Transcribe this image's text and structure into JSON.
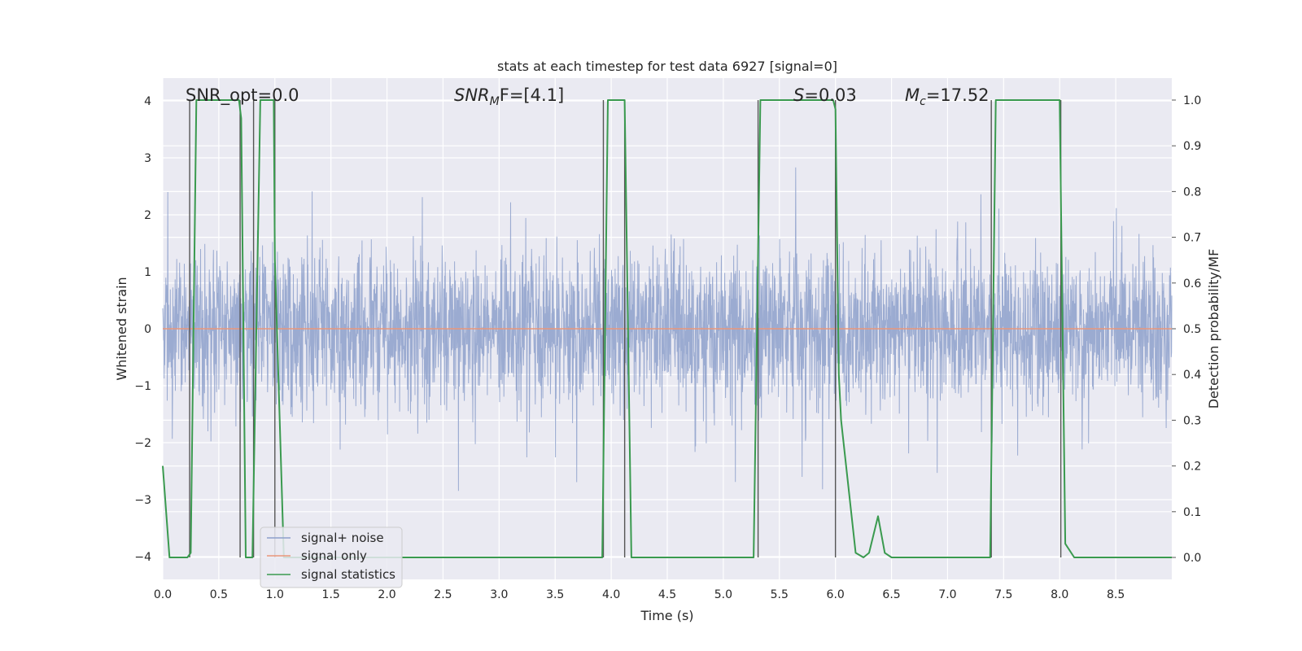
{
  "chart_data": {
    "type": "line",
    "title": "stats at each timestep for test data 6927 [signal=0]",
    "xlabel": "Time (s)",
    "ylabel": "Whitened strain",
    "ylabel_right": "Detection probability/MF",
    "xlim": [
      0.0,
      9.0
    ],
    "ylim": [
      -4.4,
      4.4
    ],
    "ylim_right": [
      -0.048,
      1.048
    ],
    "grid": true,
    "x_ticks": [
      "0.0",
      "0.5",
      "1.0",
      "1.5",
      "2.0",
      "2.5",
      "3.0",
      "3.5",
      "4.0",
      "4.5",
      "5.0",
      "5.5",
      "6.0",
      "6.5",
      "7.0",
      "7.5",
      "8.0",
      "8.5"
    ],
    "x_tick_values": [
      0.0,
      0.5,
      1.0,
      1.5,
      2.0,
      2.5,
      3.0,
      3.5,
      4.0,
      4.5,
      5.0,
      5.5,
      6.0,
      6.5,
      7.0,
      7.5,
      8.0,
      8.5
    ],
    "y_ticks": [
      "−4",
      "−3",
      "−2",
      "−1",
      "0",
      "1",
      "2",
      "3",
      "4"
    ],
    "y_tick_values": [
      -4,
      -3,
      -2,
      -1,
      0,
      1,
      2,
      3,
      4
    ],
    "y_ticks_right": [
      "0.0",
      "0.1",
      "0.2",
      "0.3",
      "0.4",
      "0.5",
      "0.6",
      "0.7",
      "0.8",
      "0.9",
      "1.0"
    ],
    "y_tick_values_right": [
      0.0,
      0.1,
      0.2,
      0.3,
      0.4,
      0.5,
      0.6,
      0.7,
      0.8,
      0.9,
      1.0
    ],
    "annotations": {
      "snr_opt": "SNR_opt=0.0",
      "snr_mf_label": "SNR",
      "snr_mf_sub": "M",
      "snr_mf_tail": "F=[4.1]",
      "s_label": "S",
      "s_value": "=0.03",
      "mc_label": "M",
      "mc_sub": "c",
      "mc_value": "=17.52"
    },
    "legend": {
      "placement": "lower-left",
      "entries": [
        {
          "label": "signal+ noise",
          "color": "#8da0cb"
        },
        {
          "label": "signal only",
          "color": "#e9967a"
        },
        {
          "label": "signal statistics",
          "color": "#3a9a4f"
        }
      ]
    },
    "series": [
      {
        "name": "signal+ noise",
        "color": "#8da0cb",
        "axis": "left",
        "description": "whitened noisy strain, amplitude roughly within [-4, 4]",
        "envelope_abs": 3.9
      },
      {
        "name": "signal only",
        "color": "#e9967a",
        "axis": "left",
        "description": "flat at zero (no injected signal)",
        "x": [
          0.0,
          9.0
        ],
        "y": [
          0.0,
          0.0
        ]
      },
      {
        "name": "signal statistics",
        "color": "#3a9a4f",
        "axis": "right",
        "x": [
          0.0,
          0.06,
          0.22,
          0.25,
          0.3,
          0.68,
          0.7,
          0.74,
          0.8,
          0.87,
          0.99,
          1.0,
          1.08,
          3.92,
          3.97,
          4.12,
          4.18,
          5.27,
          5.33,
          5.98,
          6.0,
          6.03,
          6.05,
          6.18,
          6.25,
          6.3,
          6.38,
          6.44,
          6.5,
          7.38,
          7.43,
          7.49,
          8.0,
          8.05,
          8.13,
          9.0
        ],
        "y": [
          0.2,
          0.0,
          0.0,
          0.01,
          1.0,
          1.0,
          0.96,
          0.0,
          0.0,
          1.0,
          1.0,
          0.65,
          0.0,
          0.0,
          1.0,
          1.0,
          0.0,
          0.0,
          1.0,
          1.0,
          0.98,
          0.4,
          0.3,
          0.01,
          0.0,
          0.01,
          0.09,
          0.01,
          0.0,
          0.0,
          1.0,
          1.0,
          1.0,
          0.03,
          0.0,
          0.0
        ]
      }
    ],
    "vertical_markers": [
      0.24,
      0.69,
      0.81,
      1.0,
      3.93,
      4.12,
      5.31,
      6.0,
      7.39,
      8.01
    ]
  }
}
